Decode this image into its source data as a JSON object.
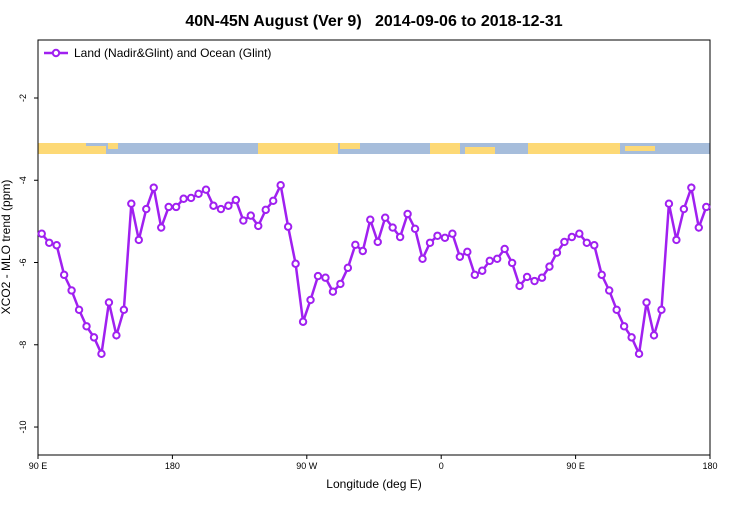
{
  "chart_data": {
    "type": "line",
    "title": "40N-45N August (Ver 9)   2014-09-06 to 2018-12-31",
    "x_label": "Longitude (deg E)",
    "y_label": "XCO2 - MLO trend (ppm)",
    "legend": "top-left",
    "x": [
      92.5,
      97.5,
      102.5,
      107.5,
      112.5,
      117.5,
      122.5,
      127.5,
      132.5,
      137.5,
      142.5,
      147.5,
      152.5,
      157.5,
      162.5,
      167.5,
      172.5,
      177.5,
      182.5,
      187.5,
      192.5,
      197.5,
      202.5,
      207.5,
      212.5,
      217.5,
      222.5,
      227.5,
      232.5,
      237.5,
      242.5,
      247.5,
      252.5,
      257.5,
      262.5,
      267.5,
      272.5,
      277.5,
      282.5,
      287.5,
      292.5,
      297.5,
      302.5,
      307.5,
      312.5,
      317.5,
      322.5,
      327.5,
      332.5,
      337.5,
      342.5,
      347.5,
      352.5,
      357.5,
      362.5,
      367.5,
      372.5,
      377.5,
      382.5,
      387.5,
      392.5,
      397.5,
      402.5,
      407.5,
      412.5,
      417.5,
      422.5,
      427.5,
      432.5,
      437.5,
      442.5,
      447.5,
      452.5,
      457.5,
      462.5,
      467.5,
      472.5,
      477.5,
      482.5,
      487.5,
      492.5,
      497.5,
      502.5,
      507.5,
      512.5,
      517.5,
      522.5,
      527.5,
      532.5,
      537.5
    ],
    "series": [
      {
        "name": "Land (Nadir&Glint) and Ocean (Glint)",
        "color": "#a020f0",
        "values": [
          -5.3,
          -5.52,
          -5.58,
          -6.3,
          -6.68,
          -7.15,
          -7.55,
          -7.82,
          -8.22,
          -6.97,
          -7.77,
          -7.15,
          -4.57,
          -5.45,
          -4.7,
          -4.18,
          -5.15,
          -4.65,
          -4.65,
          -4.45,
          -4.43,
          -4.33,
          -4.23,
          -4.62,
          -4.7,
          -4.62,
          -4.48,
          -4.98,
          -4.86,
          -5.11,
          -4.72,
          -4.5,
          -4.12,
          -5.13,
          -6.03,
          -7.44,
          -6.91,
          -6.33,
          -6.37,
          -6.71,
          -6.52,
          -6.13,
          -5.57,
          -5.72,
          -4.96,
          -5.5,
          -4.91,
          -5.15,
          -5.38,
          -4.82,
          -5.18,
          -5.91,
          -5.52,
          -5.35,
          -5.4,
          -5.3,
          -5.86,
          -5.74,
          -6.3,
          -6.2,
          -5.96,
          -5.91,
          -5.67,
          -6.01,
          -6.57,
          -6.35,
          -6.45,
          -6.37,
          -6.1,
          -5.76,
          -5.5,
          -5.38,
          -5.3,
          -5.52,
          -5.58,
          -6.3,
          -6.68,
          -7.15,
          -7.55,
          -7.82,
          -8.22,
          -6.97,
          -7.77,
          -7.15,
          -4.57,
          -5.45,
          -4.7,
          -4.18,
          -5.15,
          -4.65
        ]
      }
    ],
    "xlim": [
      90,
      540
    ],
    "xticks": [
      {
        "value": 90,
        "label": "90 E"
      },
      {
        "value": 180,
        "label": "180"
      },
      {
        "value": 270,
        "label": "90 W"
      },
      {
        "value": 360,
        "label": "0"
      },
      {
        "value": 450,
        "label": "90 E"
      },
      {
        "value": 540,
        "label": "180"
      }
    ],
    "ylim": [
      -10.68,
      -0.59
    ],
    "yticks": [
      -2,
      -4,
      -6,
      -8,
      -10
    ]
  }
}
